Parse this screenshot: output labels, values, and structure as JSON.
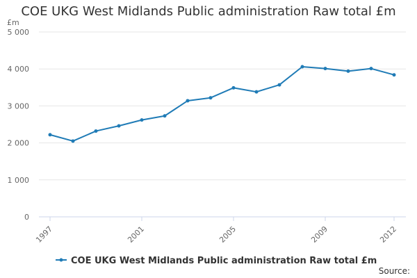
{
  "chart_data": {
    "type": "line",
    "title": "COE UKG West Midlands Public administration Raw total £m",
    "ylabel": "£m",
    "xlabel": "",
    "ylim": [
      0,
      5000
    ],
    "yticks": [
      0,
      1000,
      2000,
      3000,
      4000,
      5000
    ],
    "ytick_labels": [
      "0",
      "1 000",
      "2 000",
      "3 000",
      "4 000",
      "5 000"
    ],
    "x": [
      1997,
      1998,
      1999,
      2000,
      2001,
      2002,
      2003,
      2004,
      2005,
      2006,
      2007,
      2008,
      2009,
      2010,
      2011,
      2012
    ],
    "xticks": [
      1997,
      2001,
      2005,
      2009,
      2012
    ],
    "xtick_labels": [
      "1997",
      "2001",
      "2005",
      "2009",
      "2012"
    ],
    "grid": true,
    "series": [
      {
        "name": "COE UKG West Midlands Public administration Raw total £m",
        "color": "#1f7bb6",
        "values": [
          2220,
          2050,
          2320,
          2460,
          2620,
          2730,
          3140,
          3220,
          3490,
          3380,
          3570,
          4060,
          4010,
          3940,
          4010,
          3840
        ]
      }
    ],
    "legend_position": "bottom",
    "source_label": "Source:"
  }
}
